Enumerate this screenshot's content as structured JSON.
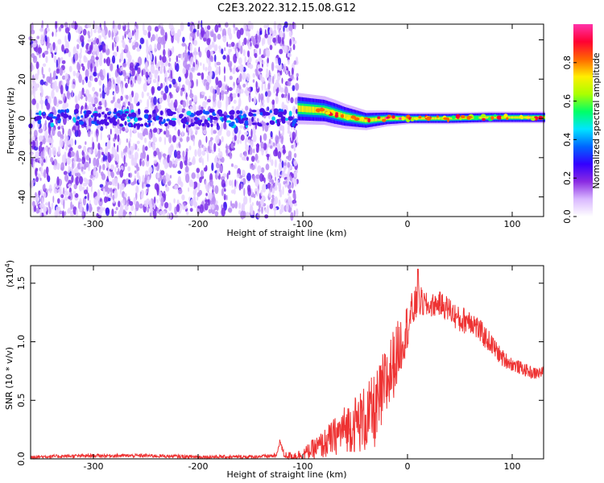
{
  "title": "C2E3.2022.312.15.08.G12",
  "chart_data": [
    {
      "type": "heatmap",
      "xlabel": "Height of straight line (km)",
      "ylabel": "Frequency (Hz)",
      "xlim": [
        -360,
        130
      ],
      "ylim": [
        -50,
        48
      ],
      "xticks": [
        "-300",
        "-200",
        "-100",
        "0",
        "100"
      ],
      "xtick_values": [
        -300,
        -200,
        -100,
        0,
        100
      ],
      "yticks": [
        "-40",
        "-20",
        "0",
        "20",
        "40"
      ],
      "ytick_values": [
        -40,
        -20,
        0,
        20,
        40
      ],
      "colorbar": {
        "label": "Normalized spectral amplitude",
        "range": [
          0,
          1
        ],
        "ticks": [
          "0.0",
          "0.2",
          "0.4",
          "0.6",
          "0.8"
        ],
        "tick_values": [
          0,
          0.2,
          0.4,
          0.6,
          0.8
        ],
        "colormap": [
          "#ffffff",
          "#d9b8ff",
          "#8a2be2",
          "#3300ff",
          "#0066ff",
          "#00e5ff",
          "#00ff66",
          "#aaff00",
          "#ffee00",
          "#ff6600",
          "#ff0033",
          "#ff33aa"
        ]
      },
      "noise_region_x": [
        -360,
        -105
      ],
      "signal_band": {
        "x_start": -105,
        "x_end": 130,
        "center_hz": [
          [
            -105,
            5
          ],
          [
            -80,
            4
          ],
          [
            -60,
            1
          ],
          [
            -40,
            -1
          ],
          [
            -20,
            0
          ],
          [
            0,
            0
          ],
          [
            40,
            0
          ],
          [
            80,
            0.5
          ],
          [
            130,
            0.5
          ]
        ],
        "half_width_hz": [
          [
            -105,
            8
          ],
          [
            -70,
            7
          ],
          [
            -40,
            5
          ],
          [
            -20,
            4
          ],
          [
            0,
            3
          ],
          [
            130,
            3
          ]
        ]
      }
    },
    {
      "type": "line",
      "xlabel": "Height of straight line (km)",
      "ylabel": "SNR (10 * v/v)",
      "y_multiplier": "(x10^4)",
      "xlim": [
        -360,
        130
      ],
      "ylim": [
        0,
        1.65
      ],
      "xticks": [
        "-300",
        "-200",
        "-100",
        "0",
        "100"
      ],
      "xtick_values": [
        -300,
        -200,
        -100,
        0,
        100
      ],
      "yticks": [
        "0.0",
        "0.5",
        "1.0",
        "1.5"
      ],
      "ytick_values": [
        0,
        0.5,
        1.0,
        1.5
      ],
      "series": [
        {
          "color": "#ee3333",
          "envelope": [
            [
              -360,
              0.02
            ],
            [
              -300,
              0.03
            ],
            [
              -250,
              0.03
            ],
            [
              -200,
              0.02
            ],
            [
              -150,
              0.02
            ],
            [
              -125,
              0.03
            ],
            [
              -122,
              0.16
            ],
            [
              -118,
              0.04
            ],
            [
              -110,
              0.03
            ],
            [
              -100,
              0.05
            ],
            [
              -90,
              0.1
            ],
            [
              -80,
              0.15
            ],
            [
              -70,
              0.22
            ],
            [
              -60,
              0.3
            ],
            [
              -50,
              0.35
            ],
            [
              -40,
              0.4
            ],
            [
              -30,
              0.48
            ],
            [
              -20,
              0.72
            ],
            [
              -10,
              0.95
            ],
            [
              0,
              1.18
            ],
            [
              5,
              1.3
            ],
            [
              10,
              1.38
            ],
            [
              20,
              1.32
            ],
            [
              30,
              1.35
            ],
            [
              40,
              1.3
            ],
            [
              50,
              1.2
            ],
            [
              60,
              1.22
            ],
            [
              70,
              1.1
            ],
            [
              80,
              1.0
            ],
            [
              90,
              0.88
            ],
            [
              100,
              0.82
            ],
            [
              110,
              0.78
            ],
            [
              120,
              0.74
            ],
            [
              130,
              0.75
            ]
          ],
          "noise_amplitude": [
            [
              -360,
              0.015
            ],
            [
              -130,
              0.015
            ],
            [
              -100,
              0.05
            ],
            [
              -60,
              0.2
            ],
            [
              -40,
              0.3
            ],
            [
              -20,
              0.35
            ],
            [
              0,
              0.2
            ],
            [
              20,
              0.1
            ],
            [
              60,
              0.12
            ],
            [
              100,
              0.06
            ],
            [
              130,
              0.05
            ]
          ],
          "peak_value": 1.62,
          "peak_x": 10
        }
      ]
    }
  ]
}
